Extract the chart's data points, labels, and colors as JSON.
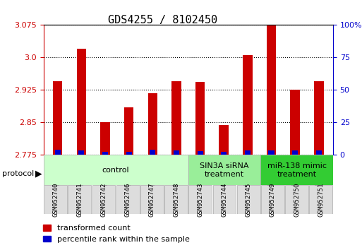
{
  "title": "GDS4255 / 8102450",
  "samples": [
    "GSM952740",
    "GSM952741",
    "GSM952742",
    "GSM952746",
    "GSM952747",
    "GSM952748",
    "GSM952743",
    "GSM952744",
    "GSM952745",
    "GSM952749",
    "GSM952750",
    "GSM952751"
  ],
  "red_values": [
    2.945,
    3.02,
    2.85,
    2.885,
    2.918,
    2.945,
    2.943,
    2.845,
    3.005,
    3.075,
    2.925,
    2.945
  ],
  "blue_values": [
    2.787,
    2.786,
    2.783,
    2.783,
    2.787,
    2.786,
    2.784,
    2.783,
    2.785,
    2.786,
    2.786,
    2.786
  ],
  "ylim": [
    2.775,
    3.075
  ],
  "yticks_left": [
    2.775,
    2.85,
    2.925,
    3.0,
    3.075
  ],
  "yticks_right_vals": [
    0,
    25,
    50,
    75,
    100
  ],
  "yticks_right_pos": [
    2.775,
    2.85,
    2.925,
    3.0,
    3.075
  ],
  "groups": [
    {
      "label": "control",
      "start": 0,
      "end": 5,
      "color": "#ccffcc"
    },
    {
      "label": "SIN3A siRNA\ntreatment",
      "start": 6,
      "end": 8,
      "color": "#99ee99"
    },
    {
      "label": "miR-138 mimic\ntreatment",
      "start": 9,
      "end": 11,
      "color": "#33cc33"
    }
  ],
  "red_color": "#cc0000",
  "blue_color": "#0000cc",
  "bar_width": 0.4,
  "title_fontsize": 11,
  "tick_fontsize": 8,
  "label_fontsize": 8,
  "legend_fontsize": 8,
  "group_label_fontsize": 8,
  "protocol_fontsize": 8,
  "dotted_grid_color": "#000000",
  "axis_color_left": "#cc0000",
  "axis_color_right": "#0000cc"
}
